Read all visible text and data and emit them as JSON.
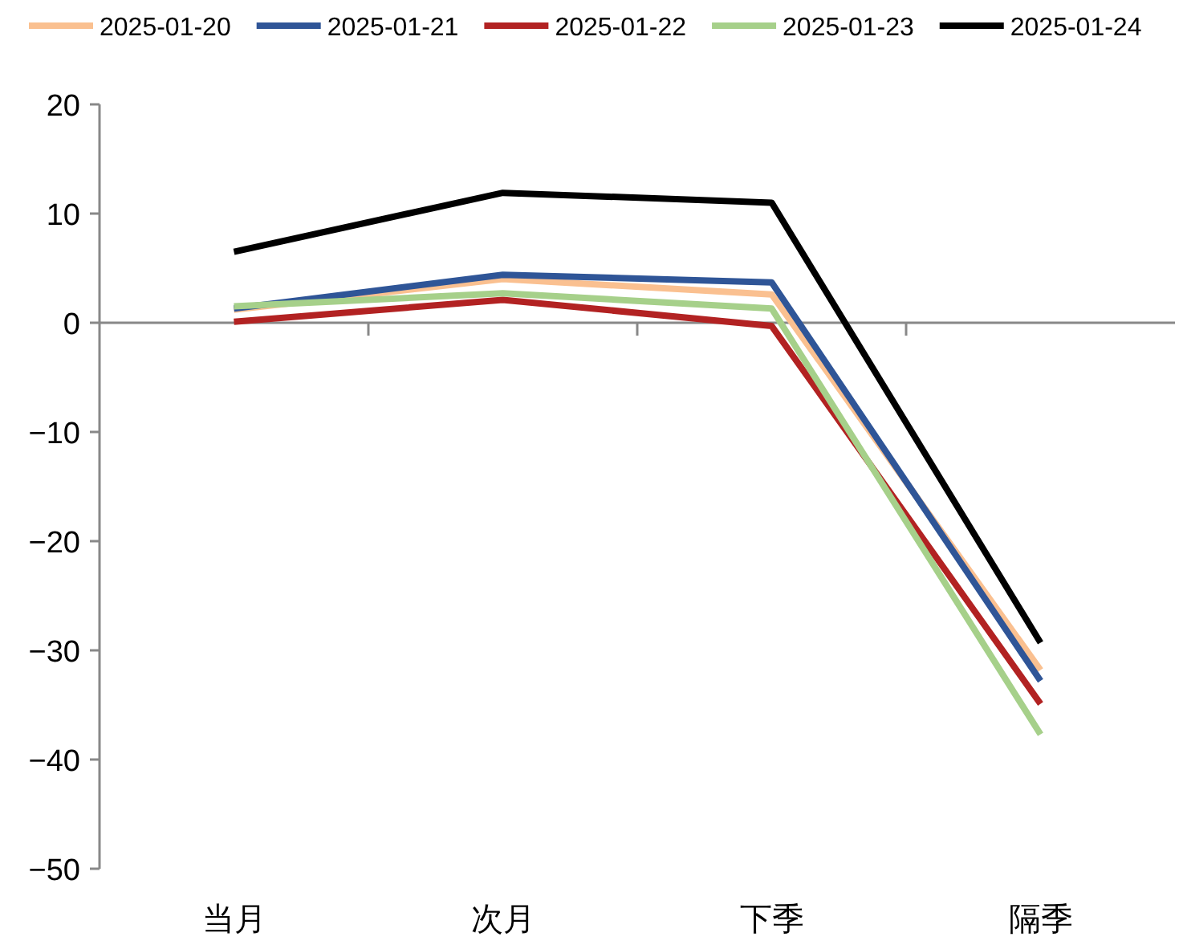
{
  "chart_data": {
    "type": "line",
    "categories": [
      "当月",
      "次月",
      "下季",
      "隔季"
    ],
    "series": [
      {
        "name": "2025-01-20",
        "color": "#fac090",
        "values": [
          1.2,
          4.0,
          2.6,
          -31.8
        ]
      },
      {
        "name": "2025-01-21",
        "color": "#2f5597",
        "values": [
          1.3,
          4.4,
          3.7,
          -32.8
        ]
      },
      {
        "name": "2025-01-22",
        "color": "#b22222",
        "values": [
          0.1,
          2.1,
          -0.3,
          -34.9
        ]
      },
      {
        "name": "2025-01-23",
        "color": "#a6d08a",
        "values": [
          1.5,
          2.7,
          1.3,
          -37.7
        ]
      },
      {
        "name": "2025-01-24",
        "color": "#000000",
        "values": [
          6.5,
          11.9,
          11.0,
          -29.3
        ]
      }
    ],
    "ylim": [
      -50,
      20
    ],
    "yticks": [
      -50,
      -40,
      -30,
      -20,
      -10,
      0,
      10,
      20
    ],
    "legend": "top",
    "marker": "none",
    "line_style": "solid"
  }
}
